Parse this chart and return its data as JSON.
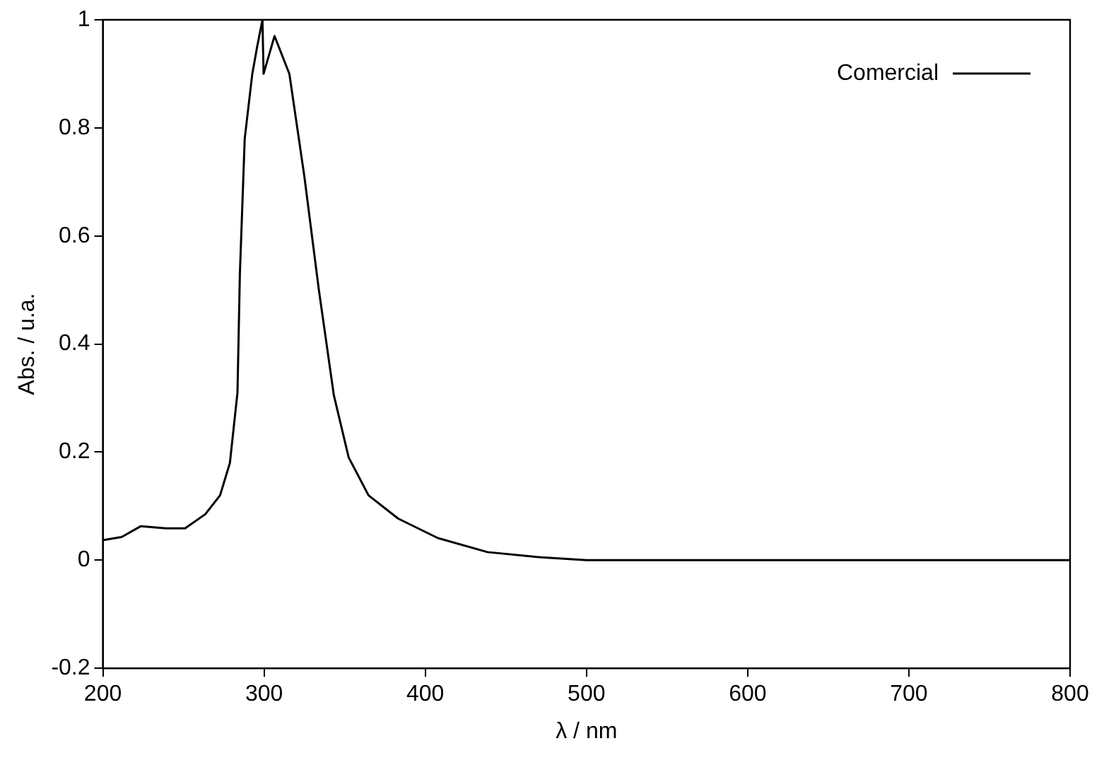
{
  "chart_data": {
    "type": "line",
    "xlabel": "λ / nm",
    "ylabel": "Abs. / u.a.",
    "xlim": [
      200,
      800
    ],
    "xticks": [
      200,
      300,
      400,
      500,
      600,
      700,
      800
    ],
    "ylim": [
      -0.2,
      1
    ],
    "yticks": [
      -0.2,
      0,
      0.2,
      0.4,
      0.6,
      0.8,
      1
    ],
    "grid": false,
    "legend": "top right",
    "marker": "none",
    "line_style": "solid",
    "series": [
      {
        "name": "Comercial",
        "color": "#000000",
        "x": [
          200,
          211.7,
          223.6,
          239,
          251,
          263.5,
          272.7,
          278.8,
          283.5,
          285,
          288,
          292.7,
          295.7,
          299,
          299.7,
          306.5,
          315.7,
          325,
          334,
          343.3,
          352.5,
          364.8,
          383.2,
          407.8,
          438.6,
          469.3,
          500,
          600,
          700,
          800
        ],
        "values": [
          0.037,
          0.043,
          0.063,
          0.059,
          0.059,
          0.085,
          0.12,
          0.18,
          0.31,
          0.53,
          0.78,
          0.9,
          0.95,
          1,
          0.9,
          0.97,
          0.9,
          0.71,
          0.5,
          0.305,
          0.19,
          0.12,
          0.077,
          0.041,
          0.015,
          0.006,
          0,
          0,
          0,
          0
        ]
      }
    ]
  }
}
